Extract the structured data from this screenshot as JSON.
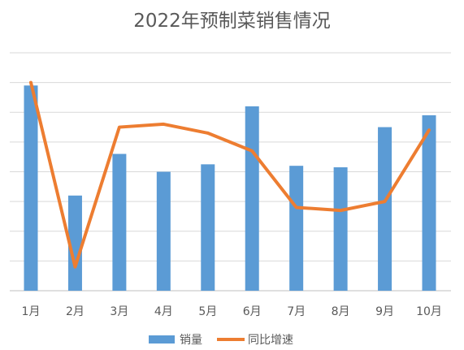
{
  "chart_data": {
    "type": "bar",
    "title": "2022年预制菜销售情况",
    "categories": [
      "1月",
      "2月",
      "3月",
      "4月",
      "5月",
      "6月",
      "7月",
      "8月",
      "9月",
      "10月"
    ],
    "series": [
      {
        "name": "销量",
        "type": "bar",
        "color": "#5B9BD5",
        "values": [
          6.9,
          3.2,
          4.6,
          4.0,
          4.25,
          6.2,
          4.2,
          4.15,
          5.5,
          5.9
        ]
      },
      {
        "name": "同比增速",
        "type": "line",
        "color": "#ED7D31",
        "values": [
          7.0,
          0.8,
          5.5,
          5.6,
          5.3,
          4.7,
          2.8,
          2.7,
          3.0,
          5.4
        ]
      }
    ],
    "ylim": [
      0,
      8
    ],
    "grid": true,
    "legend": "bottom"
  }
}
